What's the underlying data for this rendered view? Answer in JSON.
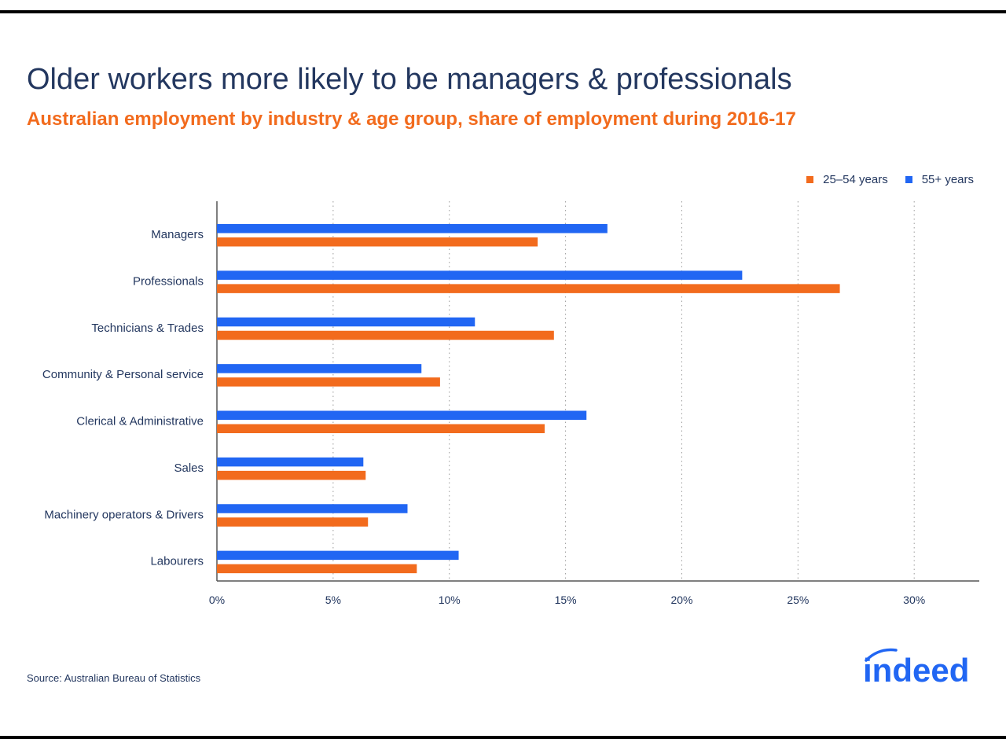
{
  "header": {
    "title": "Older workers more likely to be managers & professionals",
    "subtitle": "Australian employment by industry & age group, share of employment during 2016-17"
  },
  "colors": {
    "series_25_54": "#f26b1d",
    "series_55": "#2166f3",
    "text": "#23375f",
    "axis": "#555555",
    "grid": "#9a9a9a"
  },
  "chart_data": {
    "type": "bar",
    "orientation": "horizontal",
    "title": "Older workers more likely to be managers & professionals",
    "subtitle": "Australian employment by industry & age group, share of employment during 2016-17",
    "categories": [
      "Managers",
      "Professionals",
      "Technicians & Trades",
      "Community & Personal service",
      "Clerical & Administrative",
      "Sales",
      "Machinery operators & Drivers",
      "Labourers"
    ],
    "series": [
      {
        "name": "55+ years",
        "values": [
          16.8,
          22.6,
          11.1,
          8.8,
          15.9,
          6.3,
          8.2,
          10.4
        ]
      },
      {
        "name": "25–54 years",
        "values": [
          13.8,
          26.8,
          14.5,
          9.6,
          14.1,
          6.4,
          6.5,
          8.6
        ]
      }
    ],
    "legend": [
      "25–54 years",
      "55+ years"
    ],
    "xlim": [
      0,
      32.8
    ],
    "xticks": [
      0,
      5,
      10,
      15,
      20,
      25,
      30
    ],
    "xtick_labels": [
      "0%",
      "5%",
      "10%",
      "15%",
      "20%",
      "25%",
      "30%"
    ],
    "xlabel": "",
    "ylabel": "",
    "grid": "vertical dotted",
    "legend_position": "top-right"
  },
  "footer": {
    "source": "Source: Australian Bureau of Statistics",
    "logo_text": "indeed"
  }
}
